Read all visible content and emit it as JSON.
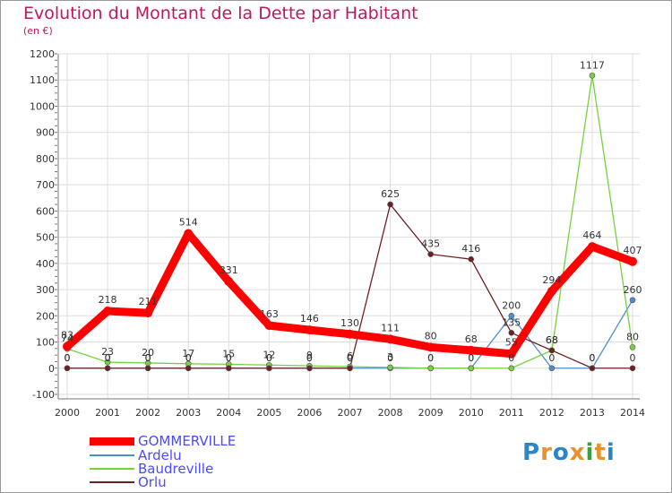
{
  "chart_data": {
    "type": "line",
    "title": "Evolution du Montant de la Dette par Habitant",
    "subtitle": "(en €)",
    "categories": [
      "2000",
      "2001",
      "2002",
      "2003",
      "2004",
      "2005",
      "2006",
      "2007",
      "2008",
      "2009",
      "2010",
      "2011",
      "2012",
      "2013",
      "2014"
    ],
    "ylim": [
      -100,
      1200
    ],
    "yticks": [
      -100,
      0,
      100,
      200,
      300,
      400,
      500,
      600,
      700,
      800,
      900,
      1000,
      1100,
      1200
    ],
    "grid": true,
    "legend_position": "bottom-left",
    "series": [
      {
        "name": "GOMMERVILLE",
        "color": "#ff0000",
        "values": [
          83,
          218,
          211,
          514,
          331,
          163,
          146,
          130,
          111,
          80,
          68,
          55,
          294,
          464,
          407
        ],
        "labels": [
          "83",
          "218",
          "211",
          "514",
          "331",
          "163",
          "146",
          "130",
          "111",
          "80",
          "68",
          "55",
          "294",
          "464",
          "407"
        ]
      },
      {
        "name": "Ardelu",
        "color": "#4a8fd0",
        "values": [
          0,
          0,
          0,
          0,
          0,
          0,
          0,
          0,
          0,
          0,
          0,
          200,
          0,
          0,
          260
        ],
        "labels": [
          "0",
          "0",
          "0",
          "0",
          "0",
          "0",
          "0",
          "0",
          "0",
          "0",
          "0",
          "200",
          "0",
          "0",
          "260"
        ]
      },
      {
        "name": "Baudreville",
        "color": "#77d13e",
        "values": [
          74,
          23,
          20,
          17,
          15,
          12,
          9,
          6,
          3,
          0,
          0,
          0,
          68,
          1117,
          80
        ],
        "labels": [
          "74",
          "23",
          "20",
          "17",
          "15",
          "12",
          "9",
          "6",
          "3",
          "0",
          "0",
          "0",
          "68",
          "1117",
          "80"
        ]
      },
      {
        "name": "Orlu",
        "color": "#6e1f24",
        "values": [
          0,
          0,
          0,
          0,
          0,
          0,
          0,
          0,
          625,
          435,
          416,
          135,
          68,
          0,
          0
        ],
        "labels": [
          "0",
          "0",
          "0",
          "0",
          "0",
          "0",
          "0",
          "0",
          "625",
          "435",
          "416",
          "135",
          "68",
          "0",
          "0"
        ]
      }
    ]
  },
  "logo": {
    "text": "Proxiti",
    "letters": [
      "P",
      "r",
      "o",
      "x",
      "i",
      "t",
      "i"
    ],
    "colors": [
      "#2a86c6",
      "#e8932a",
      "#2a86c6",
      "#e8932a",
      "#3aa03a",
      "#e8932a",
      "#2a86c6"
    ]
  }
}
